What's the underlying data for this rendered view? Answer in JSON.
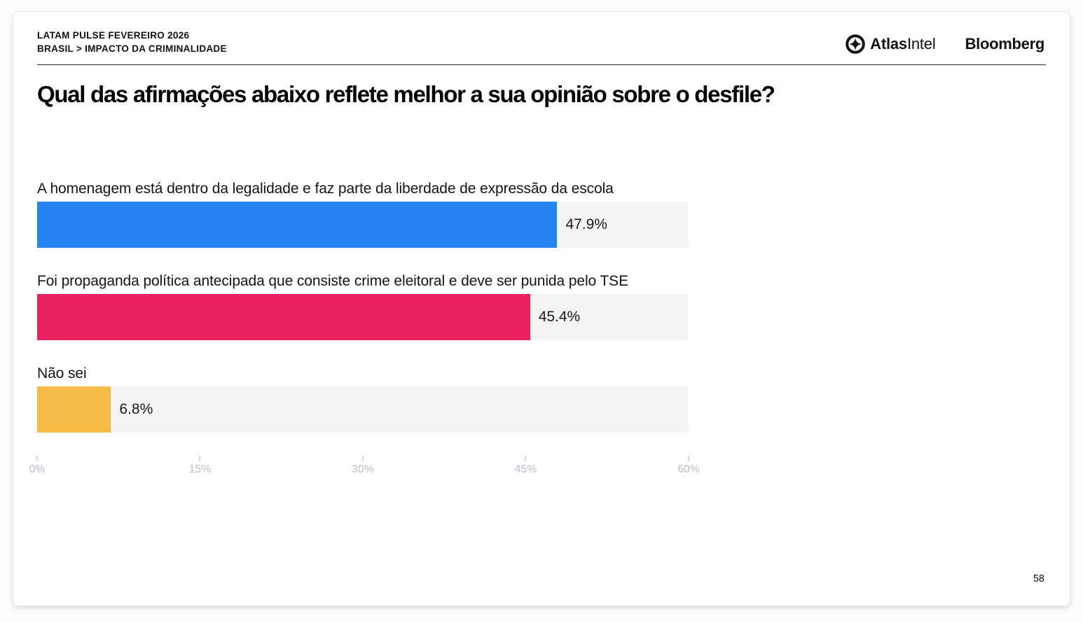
{
  "header": {
    "line1": "LATAM PULSE FEVEREIRO 2026",
    "line2": "BRASIL > IMPACTO DA CRIMINALIDADE",
    "logos": {
      "atlasintel_bold": "Atlas",
      "atlasintel_regular": "Intel",
      "bloomberg": "Bloomberg"
    }
  },
  "title": "Qual das afirmações abaixo reflete melhor a sua opinião sobre o desfile?",
  "page_number": "58",
  "chart_data": {
    "type": "bar",
    "orientation": "horizontal",
    "title": "Qual das afirmações abaixo reflete melhor a sua opinião sobre o desfile?",
    "categories": [
      "A homenagem está dentro da legalidade e faz parte da liberdade de expressão da escola",
      "Foi propaganda política antecipada que consiste crime eleitoral e deve ser punida pelo TSE",
      "Não sei"
    ],
    "values": [
      47.9,
      45.4,
      6.8
    ],
    "value_labels": [
      "47.9%",
      "45.4%",
      "6.8%"
    ],
    "bar_colors": [
      "#2584f1",
      "#ea2160",
      "#f6bb45"
    ],
    "track_color": "#f4f4f2",
    "xlabel": "",
    "ylabel": "",
    "xlim": [
      0,
      60
    ],
    "x_ticks": [
      "0%",
      "15%",
      "30%",
      "45%",
      "60%"
    ],
    "x_tick_values": [
      0,
      15,
      30,
      45,
      60
    ],
    "grid": false,
    "legend": "none"
  }
}
